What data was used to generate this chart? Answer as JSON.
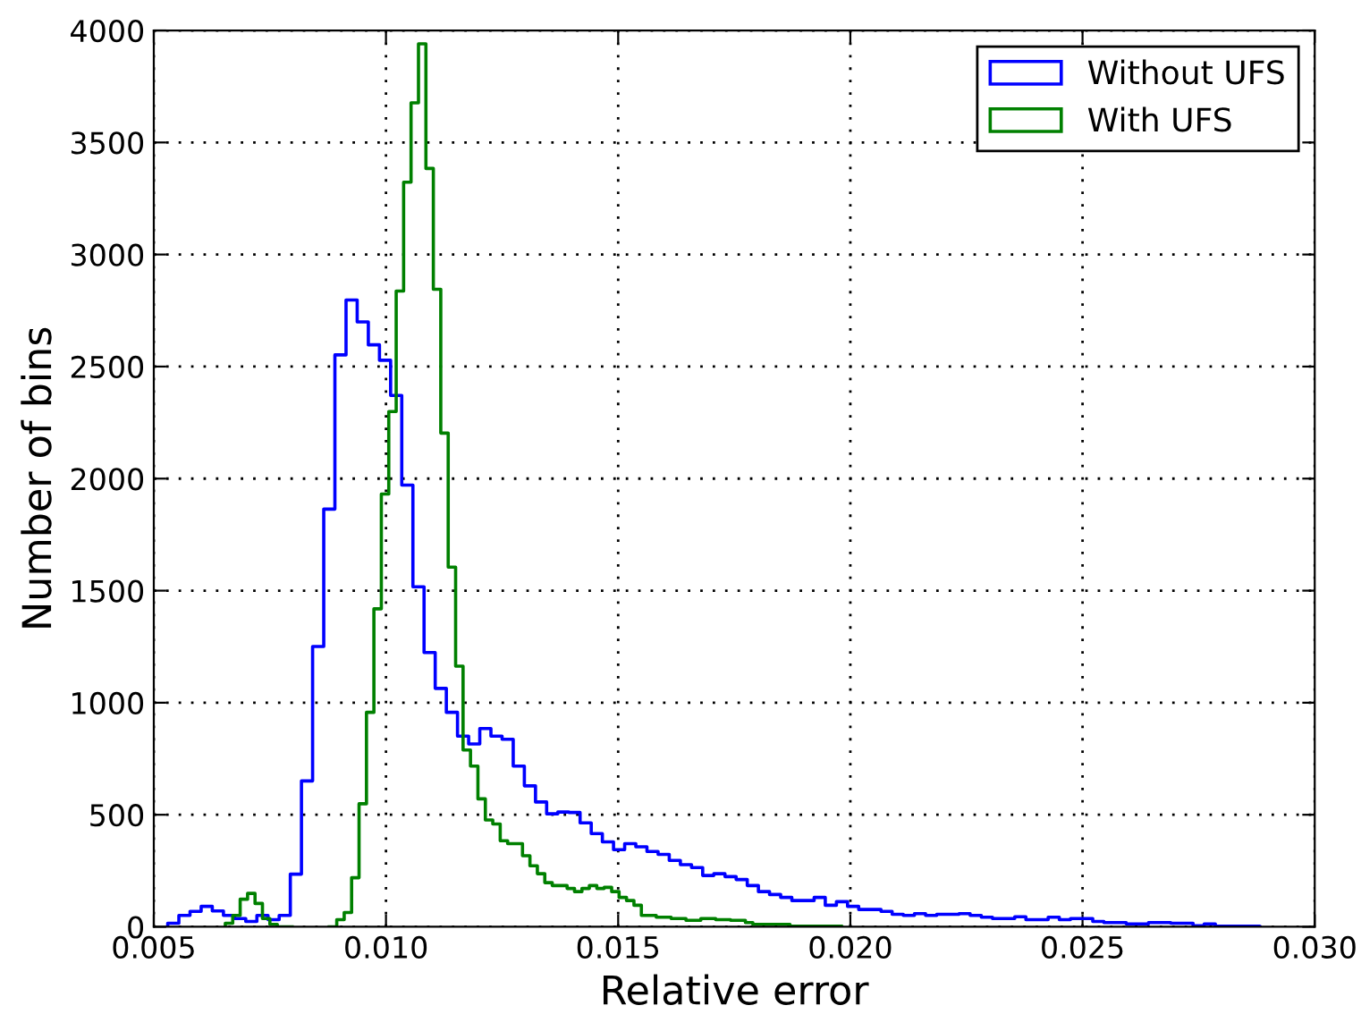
{
  "chart_data": {
    "type": "step",
    "xlabel": "Relative error",
    "ylabel": "Number of bins",
    "xlim": [
      0.005,
      0.03
    ],
    "xticks": [
      {
        "value": 0.005,
        "label": "0.005"
      },
      {
        "value": 0.01,
        "label": "0.010"
      },
      {
        "value": 0.015,
        "label": "0.015"
      },
      {
        "value": 0.02,
        "label": "0.020"
      },
      {
        "value": 0.025,
        "label": "0.025"
      },
      {
        "value": 0.03,
        "label": "0.030"
      }
    ],
    "ylim": [
      0,
      4000
    ],
    "yticks": [
      0,
      500,
      1000,
      1500,
      2000,
      2500,
      3000,
      3500,
      4000
    ],
    "grid": true,
    "legend": "top right",
    "marker": "none",
    "series": [
      {
        "name": "Without UFS",
        "color": "#0000ff",
        "x": [
          0.0053,
          0.0053,
          0.00554,
          0.00578,
          0.00602,
          0.00626,
          0.0065,
          0.00674,
          0.00698,
          0.00722,
          0.00746,
          0.0077,
          0.00794,
          0.00818,
          0.00842,
          0.00866,
          0.0089,
          0.00914,
          0.00938,
          0.00962,
          0.00986,
          0.0101,
          0.01034,
          0.01058,
          0.01082,
          0.01106,
          0.0113,
          0.01154,
          0.01178,
          0.01202,
          0.01226,
          0.0125,
          0.01274,
          0.01298,
          0.01322,
          0.01346,
          0.0137,
          0.01394,
          0.01418,
          0.01442,
          0.01466,
          0.0149,
          0.01514,
          0.01538,
          0.01562,
          0.01586,
          0.0161,
          0.01634,
          0.01658,
          0.01682,
          0.01706,
          0.0173,
          0.01754,
          0.01778,
          0.01802,
          0.01826,
          0.0185,
          0.01874,
          0.01898,
          0.01922,
          0.01946,
          0.0197,
          0.01994,
          0.02018,
          0.02042,
          0.02066,
          0.0209,
          0.02114,
          0.02138,
          0.02162,
          0.02186,
          0.0221,
          0.02234,
          0.02258,
          0.02282,
          0.02306,
          0.0233,
          0.02354,
          0.02378,
          0.02402,
          0.02426,
          0.0245,
          0.02474,
          0.02498,
          0.02522,
          0.02546,
          0.0257,
          0.02594,
          0.02618,
          0.02642,
          0.02666,
          0.0269,
          0.02714,
          0.02738,
          0.02762,
          0.02786,
          0.0281,
          0.02834,
          0.02858,
          0.02882
        ],
        "values": [
          0,
          16,
          51,
          69,
          91,
          71,
          51,
          37,
          24,
          51,
          32,
          51,
          235,
          651,
          1251,
          1864,
          2552,
          2797,
          2699,
          2597,
          2528,
          2371,
          1971,
          1517,
          1224,
          1064,
          957,
          851,
          816,
          885,
          851,
          837,
          717,
          629,
          557,
          504,
          512,
          510,
          464,
          416,
          379,
          344,
          371,
          357,
          336,
          323,
          296,
          277,
          264,
          229,
          237,
          224,
          211,
          184,
          157,
          144,
          131,
          117,
          117,
          131,
          96,
          112,
          91,
          77,
          77,
          69,
          56,
          51,
          59,
          51,
          56,
          56,
          59,
          51,
          43,
          37,
          37,
          45,
          32,
          32,
          43,
          32,
          37,
          37,
          24,
          19,
          19,
          13,
          13,
          19,
          19,
          16,
          16,
          5,
          13,
          3,
          3,
          3,
          3,
          0
        ]
      },
      {
        "name": "With UFS",
        "color": "#008000",
        "x": [
          0.00654,
          0.00654,
          0.0067,
          0.00686,
          0.00702,
          0.00718,
          0.00734,
          0.0075,
          0.00766,
          0.00782,
          0.00798,
          0.00814,
          0.0083,
          0.00846,
          0.00862,
          0.00878,
          0.00894,
          0.0091,
          0.00926,
          0.00942,
          0.00958,
          0.00974,
          0.0099,
          0.01006,
          0.01022,
          0.01038,
          0.01054,
          0.0107,
          0.01086,
          0.01102,
          0.01118,
          0.01134,
          0.0115,
          0.01166,
          0.01182,
          0.01198,
          0.01214,
          0.0123,
          0.01246,
          0.01262,
          0.01278,
          0.01294,
          0.0131,
          0.01326,
          0.01342,
          0.01358,
          0.01374,
          0.0139,
          0.01406,
          0.01422,
          0.01438,
          0.01454,
          0.0147,
          0.01486,
          0.01502,
          0.01518,
          0.01534,
          0.0155,
          0.01566,
          0.01582,
          0.01598,
          0.01614,
          0.0163,
          0.01646,
          0.01662,
          0.01678,
          0.01694,
          0.0171,
          0.01726,
          0.01742,
          0.01758,
          0.01774,
          0.0179,
          0.01806,
          0.01822,
          0.01838,
          0.01854,
          0.0187,
          0.01886,
          0.01902,
          0.01918,
          0.01934,
          0.0195,
          0.01966,
          0.01982
        ],
        "values": [
          0,
          16,
          51,
          123,
          149,
          104,
          37,
          11,
          0,
          0,
          null,
          null,
          null,
          null,
          null,
          0,
          32,
          64,
          219,
          549,
          957,
          1419,
          1931,
          2299,
          2837,
          3323,
          3677,
          3940,
          3384,
          2845,
          2203,
          1605,
          1163,
          789,
          717,
          571,
          477,
          459,
          384,
          371,
          371,
          317,
          272,
          237,
          197,
          184,
          184,
          171,
          157,
          171,
          184,
          171,
          176,
          157,
          131,
          117,
          96,
          51,
          51,
          43,
          43,
          37,
          37,
          29,
          29,
          37,
          37,
          32,
          32,
          29,
          29,
          19,
          11,
          11,
          11,
          11,
          11,
          3,
          3,
          3,
          3,
          3,
          3,
          3,
          0
        ]
      }
    ]
  }
}
